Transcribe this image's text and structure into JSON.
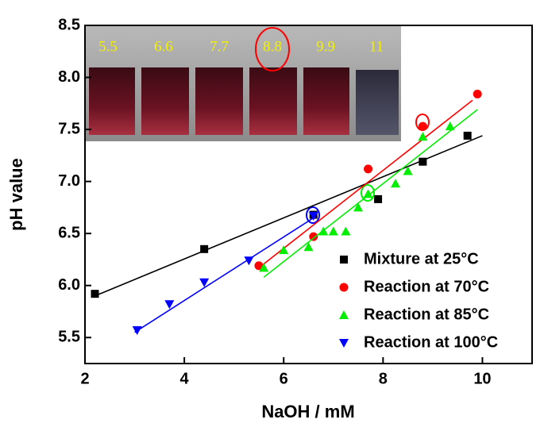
{
  "chart_data": {
    "type": "scatter",
    "x_label": "NaOH / mM",
    "y_label": "pH value",
    "xlim": [
      2,
      11
    ],
    "ylim": [
      5.25,
      8.5
    ],
    "xticks": [
      2,
      4,
      6,
      8,
      10
    ],
    "yticks": [
      5.5,
      {
        "value": 6,
        "label": "6.0"
      },
      6.5,
      {
        "value": 7,
        "label": "7.0"
      },
      7.5,
      {
        "value": 8,
        "label": "8.0"
      },
      8.5
    ],
    "legend": "lower right",
    "inset_labels": [
      5.5,
      6.6,
      7.7,
      8.8,
      9.9,
      11
    ],
    "series": [
      {
        "name": "Mixture  at  25°C",
        "color": "#000000",
        "marker": "square",
        "x": [
          2.2,
          4.4,
          6.6,
          7.9,
          8.8,
          9.7
        ],
        "values": [
          5.92,
          6.35,
          6.68,
          6.83,
          7.19,
          7.44
        ],
        "fit": {
          "x": [
            2.2,
            10
          ],
          "y": [
            5.9,
            7.44
          ]
        }
      },
      {
        "name": "Reaction at  70°C",
        "color": "#ff0000",
        "marker": "circle",
        "x": [
          5.5,
          6.6,
          7.7,
          8.8,
          9.9
        ],
        "values": [
          6.19,
          6.47,
          7.12,
          7.53,
          7.84
        ],
        "fit": {
          "x": [
            5.5,
            9.8
          ],
          "y": [
            6.17,
            7.78
          ]
        }
      },
      {
        "name": "Reaction at  85°C",
        "color": "#00ee00",
        "marker": "triangle",
        "x": [
          5.6,
          6.0,
          6.5,
          6.8,
          7.0,
          7.25,
          7.5,
          7.7,
          8.25,
          8.5,
          8.8,
          9.35
        ],
        "values": [
          6.17,
          6.34,
          6.37,
          6.52,
          6.52,
          6.52,
          6.75,
          6.88,
          6.98,
          7.1,
          7.43,
          7.53
        ],
        "fit": {
          "x": [
            5.6,
            9.9
          ],
          "y": [
            6.08,
            7.69
          ]
        }
      },
      {
        "name": "Reaction at 100°C",
        "color": "#0000ff",
        "marker": "triangle-down",
        "x": [
          3.05,
          3.7,
          4.4,
          5.3,
          6.6
        ],
        "values": [
          5.57,
          5.82,
          6.03,
          6.24,
          6.67
        ],
        "fit": {
          "x": [
            3.0,
            6.6
          ],
          "y": [
            5.55,
            6.65
          ]
        }
      }
    ]
  }
}
